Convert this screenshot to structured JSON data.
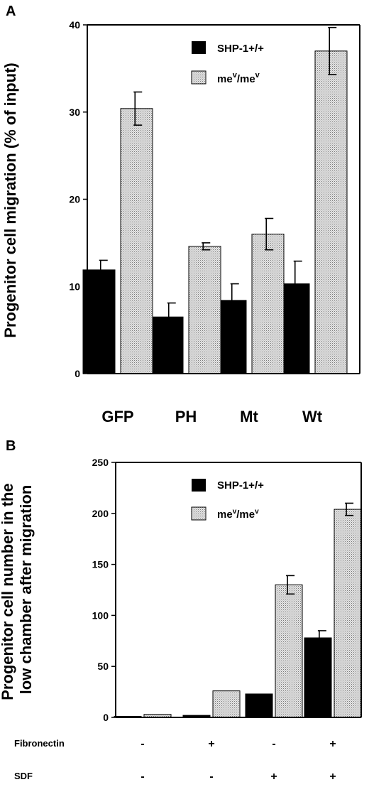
{
  "colors": {
    "wt": "#000000",
    "mev": "#d6d6d6"
  },
  "chart_data": [
    {
      "panel": "A",
      "type": "bar",
      "ylabel": "Progenitor cell migration (% of input)",
      "ylim": [
        0,
        40
      ],
      "yticks": [
        "0",
        "10",
        "20",
        "30",
        "40"
      ],
      "categories": [
        "GFP",
        "PH",
        "Mt",
        "Wt"
      ],
      "legend": {
        "placement": "top-right",
        "entries": [
          "SHP-1+/+",
          "me",
          "v",
          "/me",
          "v"
        ]
      },
      "series": [
        {
          "name": "SHP-1+/+",
          "values": [
            11.9,
            6.5,
            8.4,
            10.3
          ],
          "error": [
            1.1,
            1.6,
            1.9,
            2.6
          ]
        },
        {
          "name": "meᵛ/meᵛ",
          "values": [
            30.4,
            14.6,
            16.0,
            37.0
          ],
          "error": [
            1.9,
            0.4,
            1.8,
            2.7
          ]
        }
      ]
    },
    {
      "panel": "B",
      "type": "bar",
      "ylabel_lines": [
        "Progenitor cell number in the",
        "low chamber after migration"
      ],
      "ylim": [
        0,
        250
      ],
      "yticks": [
        "0",
        "50",
        "100",
        "150",
        "200",
        "250"
      ],
      "factors": [
        {
          "label": "Fibronectin",
          "signs": [
            "-",
            "+",
            "-",
            "+"
          ]
        },
        {
          "label": "SDF",
          "signs": [
            "-",
            "-",
            "+",
            "+"
          ]
        }
      ],
      "legend": {
        "placement": "top-right",
        "entries": [
          "SHP-1+/+",
          "me",
          "v",
          "/me",
          "v"
        ]
      },
      "series": [
        {
          "name": "SHP-1+/+",
          "values": [
            1,
            2,
            23,
            78
          ],
          "error": [
            0,
            0,
            0,
            7
          ]
        },
        {
          "name": "meᵛ/meᵛ",
          "values": [
            3,
            26,
            130,
            204
          ],
          "error": [
            0,
            0,
            9,
            6
          ]
        }
      ]
    }
  ]
}
